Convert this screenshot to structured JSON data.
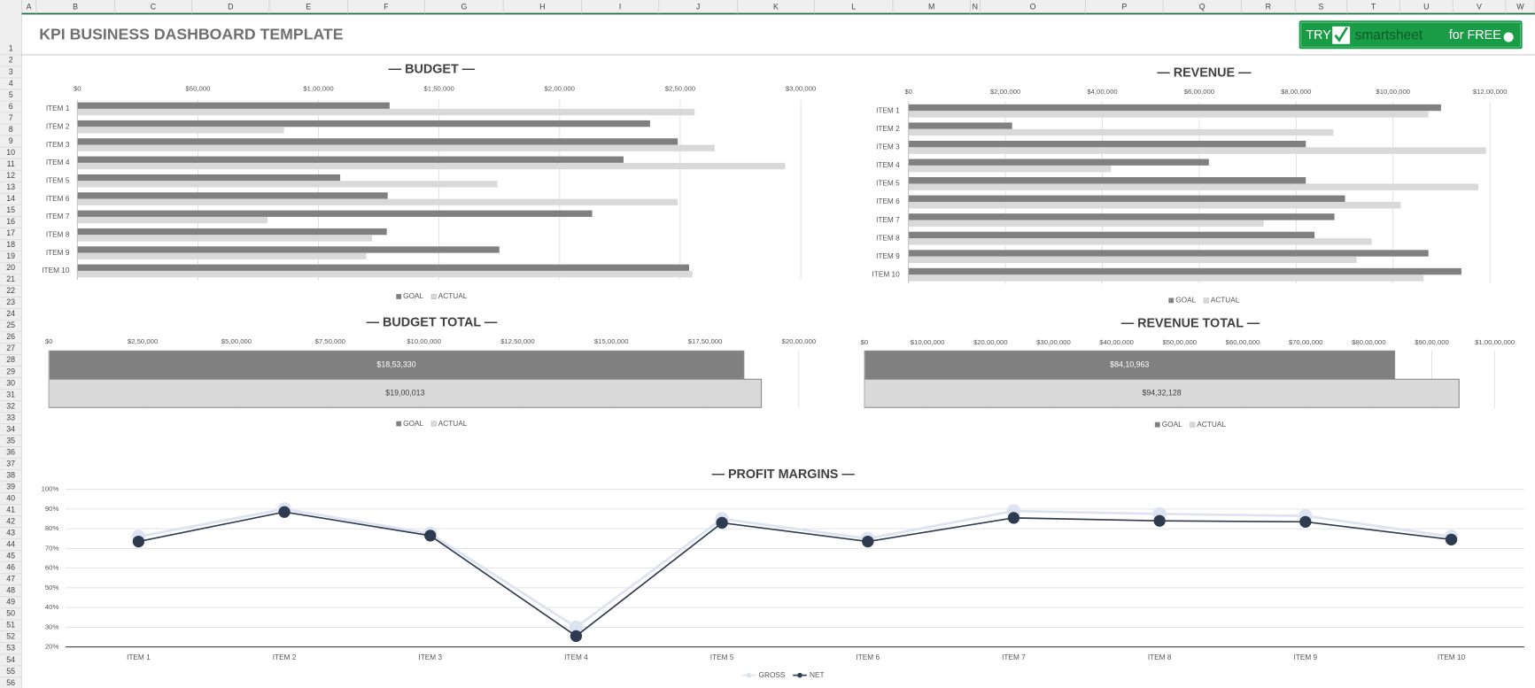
{
  "sheet": {
    "columns": [
      "A",
      "B",
      "C",
      "D",
      "E",
      "F",
      "G",
      "H",
      "I",
      "J",
      "K",
      "L",
      "M",
      "N",
      "O",
      "P",
      "Q",
      "R",
      "S",
      "T",
      "U",
      "V",
      "W"
    ],
    "rows": [
      1,
      2,
      3,
      4,
      5,
      6,
      7,
      8,
      9,
      10,
      11,
      12,
      13,
      14,
      15,
      16,
      17,
      18,
      19,
      20,
      21,
      22,
      23,
      24,
      25,
      26,
      27,
      28,
      29,
      30,
      31,
      32,
      33,
      34,
      35,
      36,
      37,
      38,
      39,
      40,
      41,
      42,
      43,
      44,
      45,
      46,
      47,
      48,
      49,
      50,
      51,
      52,
      53,
      54,
      55,
      56
    ]
  },
  "header": {
    "title": "KPI BUSINESS DASHBOARD TEMPLATE",
    "cta": {
      "try": "TRY",
      "brand": "smartsheet",
      "suffix": "for FREE"
    }
  },
  "chart_data": [
    {
      "type": "barh",
      "title": "— BUDGET —",
      "categories": [
        "ITEM 1",
        "ITEM 2",
        "ITEM 3",
        "ITEM 4",
        "ITEM 5",
        "ITEM 6",
        "ITEM 7",
        "ITEM 8",
        "ITEM 9",
        "ITEM 10"
      ],
      "series": [
        {
          "name": "GOAL",
          "color": "#808080",
          "values": [
            129500,
            237500,
            249000,
            226500,
            109000,
            128700,
            213500,
            128300,
            175000,
            253700
          ]
        },
        {
          "name": "ACTUAL",
          "color": "#d9d9d9",
          "values": [
            256000,
            85700,
            264300,
            293500,
            174200,
            249000,
            78800,
            122200,
            119800,
            255000
          ]
        }
      ],
      "xlim": [
        0,
        300000
      ],
      "xticks": [
        {
          "value": 0,
          "label": "$0"
        },
        {
          "value": 50000,
          "label": "$50,000"
        },
        {
          "value": 100000,
          "label": "$1,00,000"
        },
        {
          "value": 150000,
          "label": "$1,50,000"
        },
        {
          "value": 200000,
          "label": "$2,00,000"
        },
        {
          "value": 250000,
          "label": "$2,50,000"
        },
        {
          "value": 300000,
          "label": "$3,00,000"
        }
      ],
      "grid": true
    },
    {
      "type": "barh",
      "title": "— REVENUE —",
      "categories": [
        "ITEM 1",
        "ITEM 2",
        "ITEM 3",
        "ITEM 4",
        "ITEM 5",
        "ITEM 6",
        "ITEM 7",
        "ITEM 8",
        "ITEM 9",
        "ITEM 10"
      ],
      "series": [
        {
          "name": "GOAL",
          "color": "#808080",
          "values": [
            1099000,
            214000,
            820000,
            620000,
            820000,
            901000,
            879000,
            838000,
            1073000,
            1141000
          ]
        },
        {
          "name": "ACTUAL",
          "color": "#d9d9d9",
          "values": [
            1073000,
            877000,
            1192000,
            418000,
            1176000,
            1016000,
            733000,
            956000,
            925000,
            1063000
          ]
        }
      ],
      "xlim": [
        0,
        1200000
      ],
      "xticks": [
        {
          "value": 0,
          "label": "$0"
        },
        {
          "value": 200000,
          "label": "$2,00,000"
        },
        {
          "value": 400000,
          "label": "$4,00,000"
        },
        {
          "value": 600000,
          "label": "$6,00,000"
        },
        {
          "value": 800000,
          "label": "$8,00,000"
        },
        {
          "value": 1000000,
          "label": "$10,00,000"
        },
        {
          "value": 1200000,
          "label": "$12,00,000"
        }
      ],
      "grid": true
    },
    {
      "type": "barh",
      "title": "— BUDGET TOTAL —",
      "series": [
        {
          "name": "GOAL",
          "color": "#808080",
          "values": [
            1853330
          ],
          "value_labels": [
            "$18,53,330"
          ]
        },
        {
          "name": "ACTUAL",
          "color": "#d9d9d9",
          "values": [
            1900013
          ],
          "value_labels": [
            "$19,00,013"
          ]
        }
      ],
      "xlim": [
        0,
        2000000
      ],
      "xticks": [
        {
          "value": 0,
          "label": "$0"
        },
        {
          "value": 250000,
          "label": "$2,50,000"
        },
        {
          "value": 500000,
          "label": "$5,00,000"
        },
        {
          "value": 750000,
          "label": "$7,50,000"
        },
        {
          "value": 1000000,
          "label": "$10,00,000"
        },
        {
          "value": 1250000,
          "label": "$12,50,000"
        },
        {
          "value": 1500000,
          "label": "$15,00,000"
        },
        {
          "value": 1750000,
          "label": "$17,50,000"
        },
        {
          "value": 2000000,
          "label": "$20,00,000"
        }
      ],
      "grid": true
    },
    {
      "type": "barh",
      "title": "— REVENUE TOTAL —",
      "series": [
        {
          "name": "GOAL",
          "color": "#808080",
          "values": [
            8410963
          ],
          "value_labels": [
            "$84,10,963"
          ]
        },
        {
          "name": "ACTUAL",
          "color": "#d9d9d9",
          "values": [
            9432128
          ],
          "value_labels": [
            "$94,32,128"
          ]
        }
      ],
      "xlim": [
        0,
        10000000
      ],
      "xticks": [
        {
          "value": 0,
          "label": "$0"
        },
        {
          "value": 1000000,
          "label": "$10,00,000"
        },
        {
          "value": 2000000,
          "label": "$20,00,000"
        },
        {
          "value": 3000000,
          "label": "$30,00,000"
        },
        {
          "value": 4000000,
          "label": "$40,00,000"
        },
        {
          "value": 5000000,
          "label": "$50,00,000"
        },
        {
          "value": 6000000,
          "label": "$60,00,000"
        },
        {
          "value": 7000000,
          "label": "$70,00,000"
        },
        {
          "value": 8000000,
          "label": "$80,00,000"
        },
        {
          "value": 9000000,
          "label": "$90,00,000"
        },
        {
          "value": 10000000,
          "label": "$1,00,00,000"
        }
      ],
      "grid": true
    },
    {
      "type": "line",
      "title": "— PROFIT MARGINS —",
      "categories": [
        "ITEM 1",
        "ITEM 2",
        "ITEM 3",
        "ITEM 4",
        "ITEM 5",
        "ITEM 6",
        "ITEM 7",
        "ITEM 8",
        "ITEM 9",
        "ITEM 10"
      ],
      "series": [
        {
          "name": "GROSS",
          "color": "#dde3f0",
          "values": [
            76,
            90,
            77.5,
            30,
            85,
            75,
            89,
            87.5,
            86.5,
            76
          ]
        },
        {
          "name": "NET",
          "color": "#2e3a4f",
          "values": [
            73.5,
            88.5,
            76.5,
            25.5,
            83,
            73.5,
            85.5,
            84,
            83.5,
            74.5
          ]
        }
      ],
      "ylim": [
        20,
        100
      ],
      "yticks": [
        {
          "value": 20,
          "label": "20%"
        },
        {
          "value": 30,
          "label": "30%"
        },
        {
          "value": 40,
          "label": "40%"
        },
        {
          "value": 50,
          "label": "50%"
        },
        {
          "value": 60,
          "label": "60%"
        },
        {
          "value": 70,
          "label": "70%"
        },
        {
          "value": 80,
          "label": "80%"
        },
        {
          "value": 90,
          "label": "90%"
        },
        {
          "value": 100,
          "label": "100%"
        }
      ],
      "grid": true
    }
  ]
}
